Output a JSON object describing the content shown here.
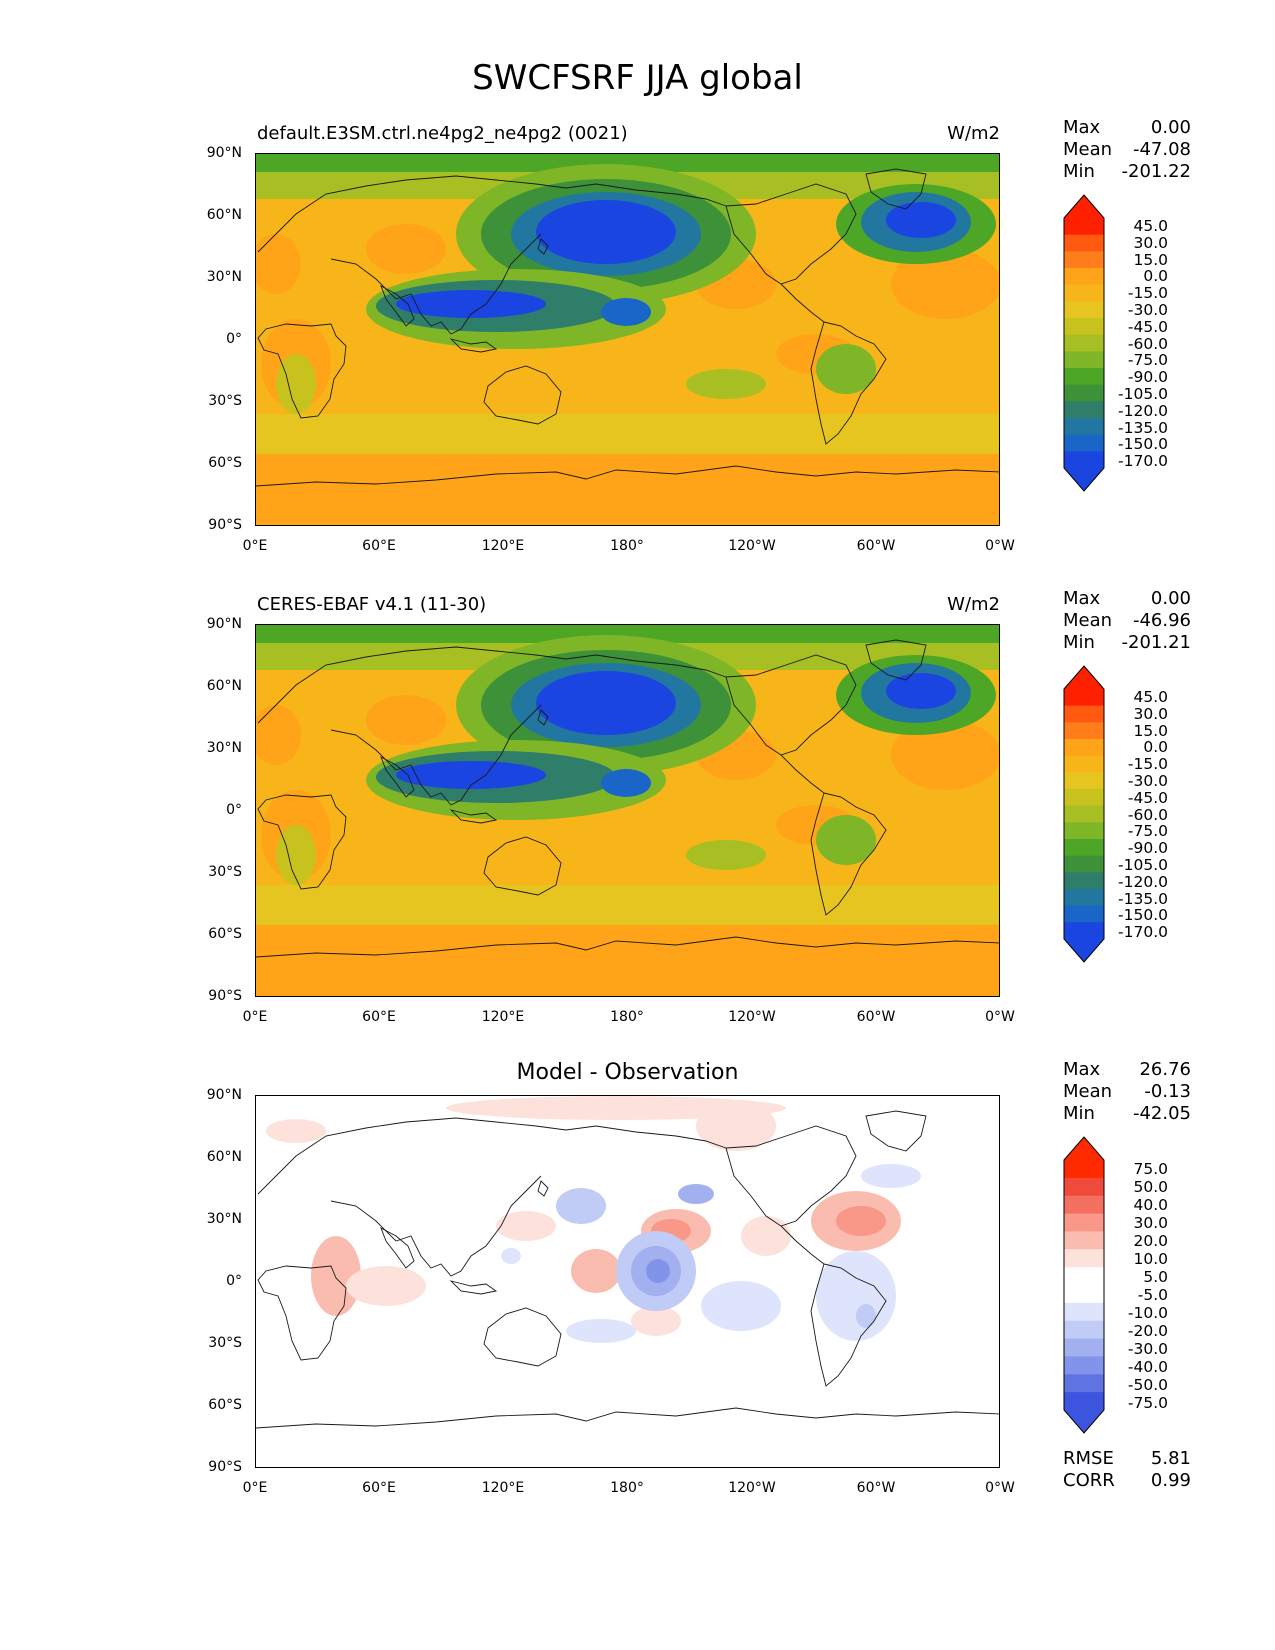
{
  "figure": {
    "title": "SWCFSRF JJA global"
  },
  "axes": {
    "lat_ticks": [
      "90°N",
      "60°N",
      "30°N",
      "0°",
      "30°S",
      "60°S",
      "90°S"
    ],
    "lon_ticks": [
      "0°E",
      "60°E",
      "120°E",
      "180°",
      "120°W",
      "60°W",
      "0°W"
    ]
  },
  "panels": [
    {
      "title": "default.E3SM.ctrl.ne4pg2_ne4pg2 (0021)",
      "units": "W/m2",
      "stats": [
        {
          "label": "Max",
          "value": "0.00"
        },
        {
          "label": "Mean",
          "value": "-47.08"
        },
        {
          "label": "Min",
          "value": "-201.22"
        }
      ],
      "colorbar_levels": [
        "45.0",
        "30.0",
        "15.0",
        "0.0",
        "-15.0",
        "-30.0",
        "-45.0",
        "-60.0",
        "-75.0",
        "-90.0",
        "-105.0",
        "-120.0",
        "-135.0",
        "-150.0",
        "-170.0"
      ]
    },
    {
      "title": "CERES-EBAF v4.1 (11-30)",
      "units": "W/m2",
      "stats": [
        {
          "label": "Max",
          "value": "0.00"
        },
        {
          "label": "Mean",
          "value": "-46.96"
        },
        {
          "label": "Min",
          "value": "-201.21"
        }
      ],
      "colorbar_levels": [
        "45.0",
        "30.0",
        "15.0",
        "0.0",
        "-15.0",
        "-30.0",
        "-45.0",
        "-60.0",
        "-75.0",
        "-90.0",
        "-105.0",
        "-120.0",
        "-135.0",
        "-150.0",
        "-170.0"
      ]
    },
    {
      "title": "Model - Observation",
      "units": "",
      "stats": [
        {
          "label": "Max",
          "value": "26.76"
        },
        {
          "label": "Mean",
          "value": "-0.13"
        },
        {
          "label": "Min",
          "value": "-42.05"
        }
      ],
      "colorbar_levels": [
        "75.0",
        "50.0",
        "40.0",
        "30.0",
        "20.0",
        "10.0",
        "5.0",
        "-5.0",
        "-10.0",
        "-20.0",
        "-30.0",
        "-40.0",
        "-50.0",
        "-75.0"
      ],
      "metrics": [
        {
          "label": "RMSE",
          "value": "5.81"
        },
        {
          "label": "CORR",
          "value": "0.99"
        }
      ]
    }
  ],
  "colors": {
    "field_scale": [
      "#ff2000",
      "#ff5a10",
      "#ff7d1a",
      "#ffa418",
      "#f7b51a",
      "#e6c520",
      "#c8c21f",
      "#a7bf23",
      "#7fb628",
      "#4ea627",
      "#3d9138",
      "#2f7e6a",
      "#2277a0",
      "#1a66c8",
      "#1b45e0",
      "#0e2cf8"
    ],
    "diff_scale": [
      "#ff2a00",
      "#ef4a3a",
      "#f56f60",
      "#f99888",
      "#fbbcb0",
      "#fde2dc",
      "#ffffff",
      "#ffffff",
      "#dee4fb",
      "#c0cbf6",
      "#a2b0f0",
      "#8194ea",
      "#5f73e2",
      "#3d55de",
      "#1528f8"
    ]
  }
}
